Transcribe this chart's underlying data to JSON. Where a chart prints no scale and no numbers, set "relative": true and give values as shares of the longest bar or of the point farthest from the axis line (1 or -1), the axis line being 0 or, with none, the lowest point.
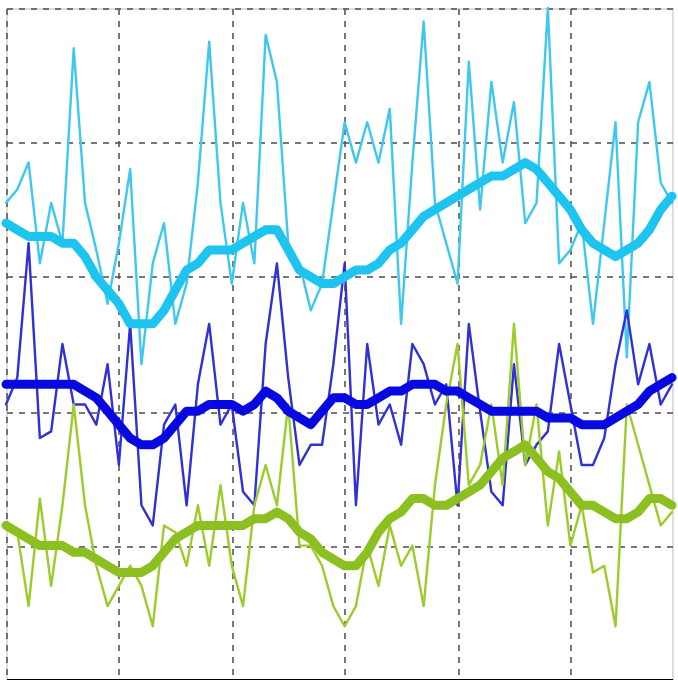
{
  "chart_data": {
    "type": "line",
    "relative": true,
    "grid": true,
    "legend": false,
    "tick_labels": false,
    "marker": "none",
    "line_style": "solid",
    "categories": [
      null,
      null,
      null,
      null,
      null,
      null,
      null,
      null,
      null,
      null,
      null,
      null,
      null,
      null,
      null,
      null,
      null,
      null,
      null,
      null,
      null,
      null,
      null,
      null,
      null,
      null,
      null,
      null,
      null,
      null,
      null,
      null,
      null,
      null,
      null,
      null,
      null,
      null,
      null,
      null,
      null,
      null,
      null,
      null,
      null,
      null,
      null,
      null,
      null,
      null,
      null,
      null,
      null,
      null,
      null,
      null,
      null,
      null,
      null,
      null
    ],
    "series": [
      {
        "color": "#3ec8f0",
        "values": [
          0.71,
          0.73,
          0.77,
          0.62,
          0.71,
          0.65,
          0.94,
          0.71,
          0.64,
          0.56,
          0.65,
          0.76,
          0.47,
          0.62,
          0.68,
          0.53,
          0.59,
          0.74,
          0.95,
          0.71,
          0.59,
          0.71,
          0.62,
          0.96,
          0.89,
          0.65,
          0.62,
          0.55,
          0.59,
          0.71,
          0.83,
          0.77,
          0.83,
          0.77,
          0.85,
          0.53,
          0.77,
          0.98,
          0.71,
          0.65,
          0.59,
          0.92,
          0.7,
          0.89,
          0.77,
          0.86,
          0.68,
          0.71,
          1.0,
          0.62,
          0.64,
          0.68,
          0.53,
          0.68,
          0.83,
          0.48,
          0.83,
          0.89,
          0.74,
          0.71
        ]
      },
      {
        "color": "#3030d8",
        "values": [
          0.41,
          0.45,
          0.65,
          0.36,
          0.37,
          0.5,
          0.41,
          0.41,
          0.38,
          0.47,
          0.32,
          0.53,
          0.26,
          0.23,
          0.38,
          0.41,
          0.26,
          0.44,
          0.53,
          0.38,
          0.41,
          0.28,
          0.26,
          0.5,
          0.62,
          0.45,
          0.32,
          0.35,
          0.35,
          0.47,
          0.62,
          0.26,
          0.5,
          0.38,
          0.41,
          0.35,
          0.5,
          0.47,
          0.41,
          0.44,
          0.26,
          0.53,
          0.4,
          0.28,
          0.26,
          0.47,
          0.32,
          0.35,
          0.37,
          0.5,
          0.41,
          0.32,
          0.32,
          0.36,
          0.47,
          0.55,
          0.44,
          0.5,
          0.41,
          0.44
        ]
      },
      {
        "color": "#9ccc2c",
        "values": [
          0.23,
          0.22,
          0.11,
          0.27,
          0.14,
          0.26,
          0.41,
          0.26,
          0.17,
          0.11,
          0.14,
          0.17,
          0.14,
          0.08,
          0.23,
          0.22,
          0.17,
          0.26,
          0.17,
          0.29,
          0.17,
          0.11,
          0.26,
          0.32,
          0.26,
          0.41,
          0.2,
          0.2,
          0.17,
          0.11,
          0.08,
          0.11,
          0.2,
          0.14,
          0.23,
          0.17,
          0.2,
          0.11,
          0.29,
          0.41,
          0.5,
          0.29,
          0.32,
          0.41,
          0.29,
          0.53,
          0.32,
          0.41,
          0.23,
          0.34,
          0.2,
          0.26,
          0.16,
          0.17,
          0.08,
          0.41,
          0.35,
          0.29,
          0.23,
          0.25
        ]
      },
      {
        "color": "#1ec4f0",
        "values": [
          0.68,
          0.67,
          0.66,
          0.66,
          0.66,
          0.65,
          0.65,
          0.63,
          0.6,
          0.58,
          0.56,
          0.53,
          0.53,
          0.53,
          0.55,
          0.58,
          0.61,
          0.62,
          0.64,
          0.64,
          0.64,
          0.65,
          0.66,
          0.67,
          0.67,
          0.64,
          0.61,
          0.6,
          0.59,
          0.59,
          0.6,
          0.61,
          0.61,
          0.62,
          0.64,
          0.65,
          0.67,
          0.69,
          0.7,
          0.71,
          0.72,
          0.73,
          0.74,
          0.75,
          0.75,
          0.76,
          0.77,
          0.76,
          0.74,
          0.72,
          0.7,
          0.67,
          0.65,
          0.64,
          0.63,
          0.64,
          0.65,
          0.67,
          0.7,
          0.72
        ]
      },
      {
        "color": "#0808e0",
        "values": [
          0.44,
          0.44,
          0.44,
          0.44,
          0.44,
          0.44,
          0.44,
          0.43,
          0.42,
          0.4,
          0.38,
          0.36,
          0.35,
          0.35,
          0.36,
          0.38,
          0.4,
          0.4,
          0.41,
          0.41,
          0.41,
          0.4,
          0.41,
          0.43,
          0.42,
          0.4,
          0.39,
          0.38,
          0.4,
          0.42,
          0.42,
          0.41,
          0.41,
          0.42,
          0.43,
          0.43,
          0.44,
          0.44,
          0.44,
          0.43,
          0.43,
          0.42,
          0.41,
          0.4,
          0.4,
          0.4,
          0.4,
          0.4,
          0.39,
          0.39,
          0.39,
          0.38,
          0.38,
          0.38,
          0.39,
          0.4,
          0.41,
          0.43,
          0.44,
          0.45
        ]
      },
      {
        "color": "#8cc020",
        "values": [
          0.23,
          0.22,
          0.21,
          0.2,
          0.2,
          0.2,
          0.19,
          0.19,
          0.18,
          0.17,
          0.16,
          0.16,
          0.16,
          0.17,
          0.19,
          0.21,
          0.22,
          0.23,
          0.23,
          0.23,
          0.23,
          0.23,
          0.24,
          0.24,
          0.25,
          0.24,
          0.22,
          0.21,
          0.19,
          0.18,
          0.17,
          0.17,
          0.19,
          0.22,
          0.24,
          0.25,
          0.27,
          0.27,
          0.26,
          0.26,
          0.27,
          0.28,
          0.29,
          0.31,
          0.33,
          0.34,
          0.35,
          0.33,
          0.31,
          0.3,
          0.28,
          0.26,
          0.26,
          0.25,
          0.24,
          0.24,
          0.25,
          0.27,
          0.27,
          0.26
        ]
      }
    ]
  }
}
